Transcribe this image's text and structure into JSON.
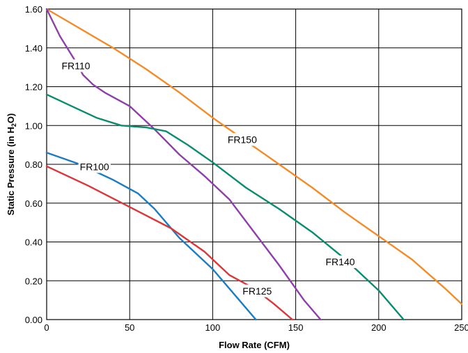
{
  "chart_data": {
    "type": "line",
    "xlabel": "Flow Rate (CFM)",
    "ylabel": {
      "prefix": "Static Pressure (in H",
      "sub1": "2",
      "mid": "O",
      "suffix": ")"
    },
    "xlim": [
      0,
      250
    ],
    "ylim": [
      0,
      1.6
    ],
    "x_ticks": [
      0,
      50,
      100,
      150,
      200,
      250
    ],
    "x_tick_labels": [
      "0",
      "50",
      "100",
      "150",
      "200",
      "250"
    ],
    "y_ticks": [
      0,
      0.2,
      0.4,
      0.6,
      0.8,
      1.0,
      1.2,
      1.4,
      1.6
    ],
    "y_tick_labels": [
      "0.00",
      "0.20",
      "0.40",
      "0.60",
      "0.80",
      "1.00",
      "1.20",
      "1.40",
      "1.60"
    ],
    "grid": true,
    "series": [
      {
        "name": "FR150",
        "color": "#f28c28",
        "points": [
          [
            0,
            1.6
          ],
          [
            20,
            1.5
          ],
          [
            40,
            1.4
          ],
          [
            60,
            1.29
          ],
          [
            80,
            1.17
          ],
          [
            100,
            1.04
          ],
          [
            120,
            0.92
          ],
          [
            140,
            0.8
          ],
          [
            160,
            0.68
          ],
          [
            180,
            0.55
          ],
          [
            200,
            0.43
          ],
          [
            220,
            0.31
          ],
          [
            240,
            0.16
          ],
          [
            250,
            0.08
          ]
        ]
      },
      {
        "name": "FR110",
        "color": "#8e3fa8",
        "points": [
          [
            0,
            1.6
          ],
          [
            8,
            1.46
          ],
          [
            16,
            1.35
          ],
          [
            22,
            1.26
          ],
          [
            28,
            1.21
          ],
          [
            35,
            1.17
          ],
          [
            50,
            1.1
          ],
          [
            65,
            0.98
          ],
          [
            80,
            0.85
          ],
          [
            95,
            0.74
          ],
          [
            110,
            0.62
          ],
          [
            125,
            0.45
          ],
          [
            140,
            0.28
          ],
          [
            155,
            0.1
          ],
          [
            165,
            0.0
          ]
        ]
      },
      {
        "name": "FR140",
        "color": "#0a8c6e",
        "points": [
          [
            0,
            1.16
          ],
          [
            15,
            1.1
          ],
          [
            30,
            1.04
          ],
          [
            45,
            1.0
          ],
          [
            60,
            0.99
          ],
          [
            72,
            0.97
          ],
          [
            85,
            0.9
          ],
          [
            100,
            0.81
          ],
          [
            120,
            0.68
          ],
          [
            140,
            0.57
          ],
          [
            160,
            0.45
          ],
          [
            180,
            0.31
          ],
          [
            200,
            0.15
          ],
          [
            215,
            0.0
          ]
        ]
      },
      {
        "name": "FR100",
        "color": "#1a7cc1",
        "points": [
          [
            0,
            0.86
          ],
          [
            20,
            0.8
          ],
          [
            40,
            0.72
          ],
          [
            55,
            0.65
          ],
          [
            65,
            0.57
          ],
          [
            80,
            0.42
          ],
          [
            100,
            0.26
          ],
          [
            115,
            0.11
          ],
          [
            126,
            0.0
          ]
        ]
      },
      {
        "name": "FR125",
        "color": "#d9383a",
        "points": [
          [
            0,
            0.79
          ],
          [
            25,
            0.69
          ],
          [
            50,
            0.58
          ],
          [
            75,
            0.47
          ],
          [
            95,
            0.35
          ],
          [
            110,
            0.23
          ],
          [
            125,
            0.16
          ],
          [
            137,
            0.08
          ],
          [
            148,
            0.0
          ]
        ]
      }
    ],
    "labels": [
      {
        "text": "FR110",
        "x": 9,
        "y": 1.29
      },
      {
        "text": "FR150",
        "x": 109,
        "y": 0.91
      },
      {
        "text": "FR100",
        "x": 20,
        "y": 0.77
      },
      {
        "text": "FR140",
        "x": 168,
        "y": 0.28
      },
      {
        "text": "FR125",
        "x": 118,
        "y": 0.13
      }
    ]
  }
}
